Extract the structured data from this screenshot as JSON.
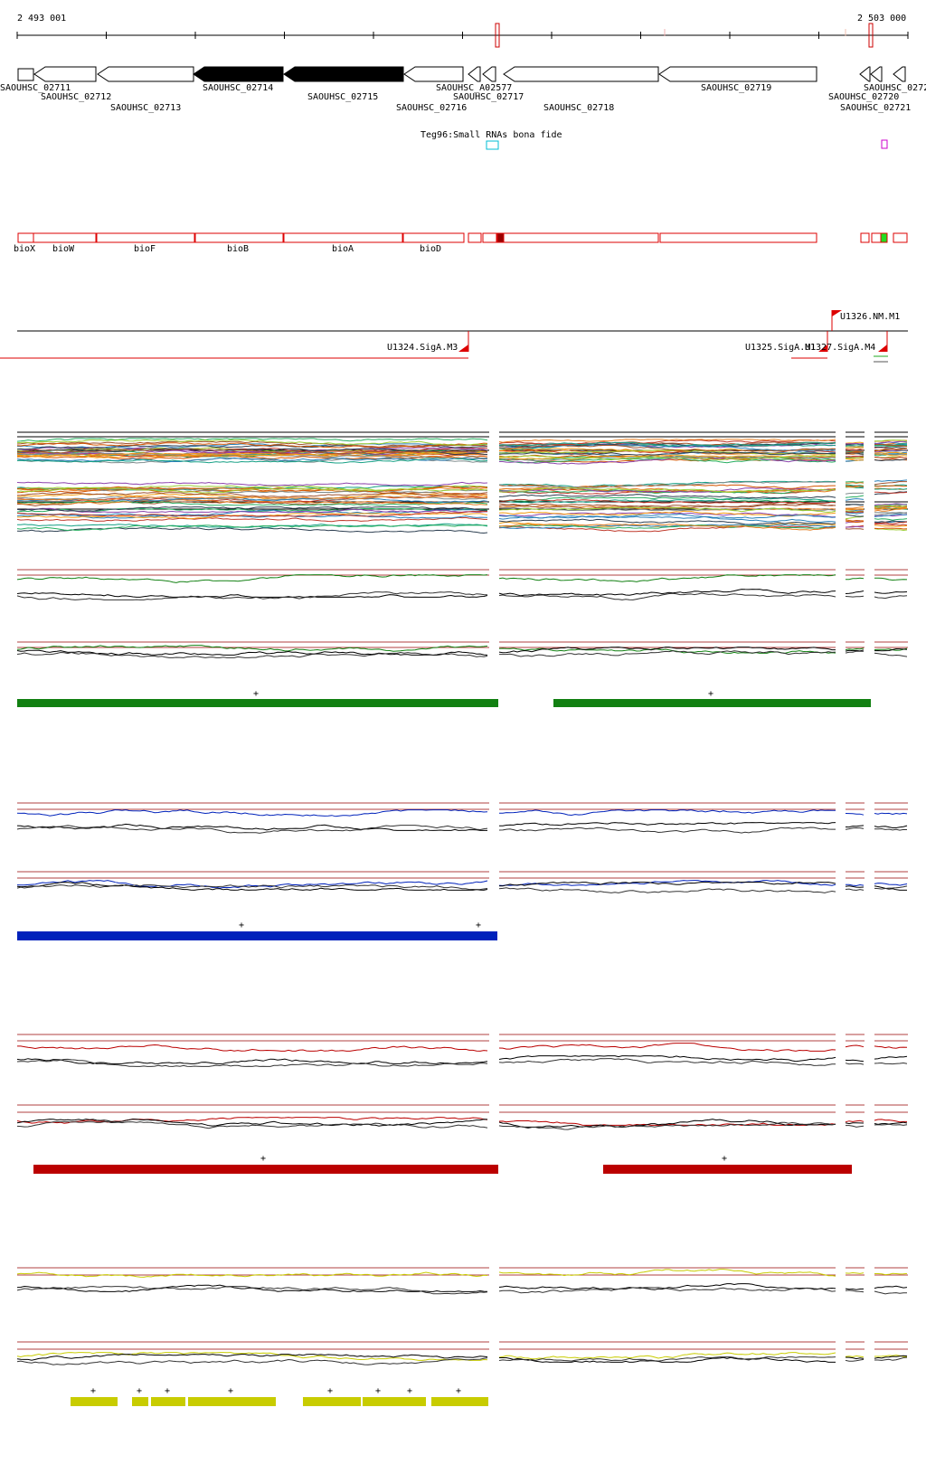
{
  "ruler": {
    "start_label": "2 493 001",
    "end_label": "2 503 000"
  },
  "genes": [
    {
      "id": "SAOUHSC_02711",
      "strand": "-",
      "filled": false
    },
    {
      "id": "SAOUHSC_02712",
      "strand": "-",
      "filled": false
    },
    {
      "id": "SAOUHSC_02713",
      "strand": "-",
      "filled": false
    },
    {
      "id": "SAOUHSC_02714",
      "strand": "-",
      "filled": true
    },
    {
      "id": "SAOUHSC_02715",
      "strand": "-",
      "filled": true
    },
    {
      "id": "SAOUHSC_02716",
      "strand": "-",
      "filled": false
    },
    {
      "id": "SAOUHSC_A02577",
      "strand": "-",
      "filled": false
    },
    {
      "id": "SAOUHSC_02717",
      "strand": "-",
      "filled": false
    },
    {
      "id": "SAOUHSC_02718",
      "strand": "-",
      "filled": false
    },
    {
      "id": "SAOUHSC_02719",
      "strand": "-",
      "filled": false
    },
    {
      "id": "SAOUHSC_02720",
      "strand": "-",
      "filled": false
    },
    {
      "id": "SAOUHSC_02721",
      "strand": "-",
      "filled": false
    },
    {
      "id": "SAOUHSC_0272",
      "strand": "-",
      "filled": false
    }
  ],
  "small_rna": {
    "label": "Teg96:Small RNAs bona fide"
  },
  "operon_genes": [
    "bioX",
    "bioW",
    "bioF",
    "bioB",
    "bioA",
    "bioD"
  ],
  "promoters": [
    {
      "label": "U1326.NM.M1",
      "strand": "+"
    },
    {
      "label": "U1324.SigA.M3",
      "strand": "-"
    },
    {
      "label": "U1325.SigA.M1",
      "strand": "-"
    },
    {
      "label": "U1327.SigA.M4",
      "strand": "-"
    }
  ],
  "colors": {
    "gene_outline": "#000000",
    "red_track": "#dd0000",
    "green": "#128012",
    "blue": "#0022bb",
    "dark_red": "#bb0000",
    "yellow": "#c8cc00",
    "small_rna_cyan": "#00bcd4",
    "magenta": "#cc00cc"
  },
  "segments": {
    "green": {
      "marker": "+"
    },
    "blue": {
      "marker": "+"
    },
    "red": {
      "marker": "+"
    },
    "yellow": {
      "marker": "+"
    }
  }
}
